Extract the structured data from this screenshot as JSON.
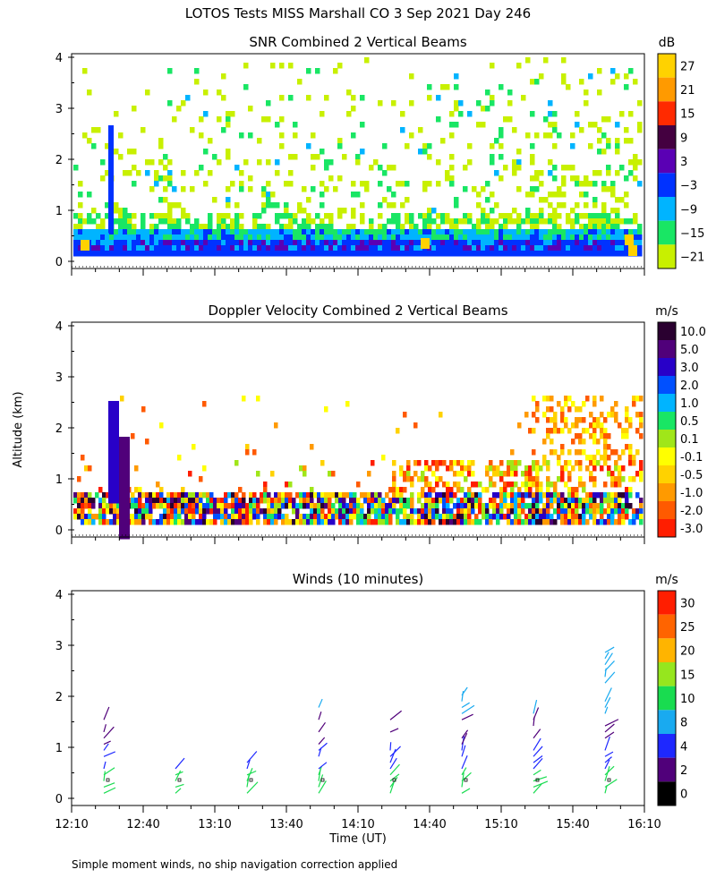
{
  "figure": {
    "title": "LOTOS Tests MISS Marshall CO   3 Sep 2021 Day 246",
    "shared_ylabel": "Altitude (km)",
    "shared_xlabel": "Time (UT)",
    "footnote": "Simple moment winds, no ship navigation correction applied"
  },
  "chart_data": [
    {
      "type": "heatmap",
      "title": "SNR Combined 2 Vertical Beams",
      "ylim": [
        0,
        4
      ],
      "yticks": [
        "0",
        "1",
        "2",
        "3",
        "4"
      ],
      "colorbar": {
        "unit": "dB",
        "labels": [
          "27",
          "21",
          "15",
          "9",
          "3",
          "−3",
          "−9",
          "−15",
          "−21"
        ],
        "colors": [
          "#ffd200",
          "#ff9a00",
          "#ff2a00",
          "#440040",
          "#5a00b4",
          "#0032ff",
          "#00b4ff",
          "#19e664",
          "#c8f000"
        ]
      },
      "notes": "Strongest returns near 0.3-0.6 km across the whole period; scattered weak returns up to 4 km."
    },
    {
      "type": "heatmap",
      "title": "Doppler Velocity Combined 2 Vertical Beams",
      "ylim": [
        0,
        4
      ],
      "yticks": [
        "0",
        "1",
        "2",
        "3",
        "4"
      ],
      "colorbar": {
        "unit": "m/s",
        "labels": [
          "10.0",
          "5.0",
          "3.0",
          "2.0",
          "1.0",
          "0.5",
          "0.1",
          "-0.1",
          "-0.5",
          "-1.0",
          "-2.0",
          "-3.0"
        ],
        "colors": [
          "#2a0030",
          "#50007a",
          "#2800c8",
          "#0050ff",
          "#00b4ff",
          "#19e664",
          "#a0e619",
          "#ffff00",
          "#ffd200",
          "#ff9a00",
          "#ff5a00",
          "#ff1e00"
        ]
      },
      "notes": "Mixed velocities concentrated below 0.8 km; positive velocities near 12:35 UT up to 2.5 km."
    },
    {
      "type": "scatter",
      "title": "Winds (10 minutes)",
      "ylim": [
        0,
        4
      ],
      "yticks": [
        "0",
        "1",
        "2",
        "3",
        "4"
      ],
      "xlim": [
        "12:10",
        "16:10"
      ],
      "xticks": [
        "12:10",
        "12:40",
        "13:10",
        "13:40",
        "14:10",
        "14:40",
        "15:10",
        "15:40",
        "16:10"
      ],
      "colorbar": {
        "unit": "m/s",
        "labels": [
          "30",
          "25",
          "20",
          "15",
          "10",
          "8",
          "4",
          "2",
          "0"
        ],
        "colors": [
          "#ff1e00",
          "#ff6400",
          "#ffb400",
          "#96e61e",
          "#19dc50",
          "#19aaf0",
          "#1e28ff",
          "#50007a",
          "#000000"
        ]
      },
      "profile_times": [
        "12:25",
        "12:55",
        "13:25",
        "13:55",
        "14:25",
        "14:55",
        "15:25",
        "15:55"
      ],
      "notes": "Wind barbs plotted at ten-minute profiles, altitude 0.2-2.9 km."
    }
  ]
}
